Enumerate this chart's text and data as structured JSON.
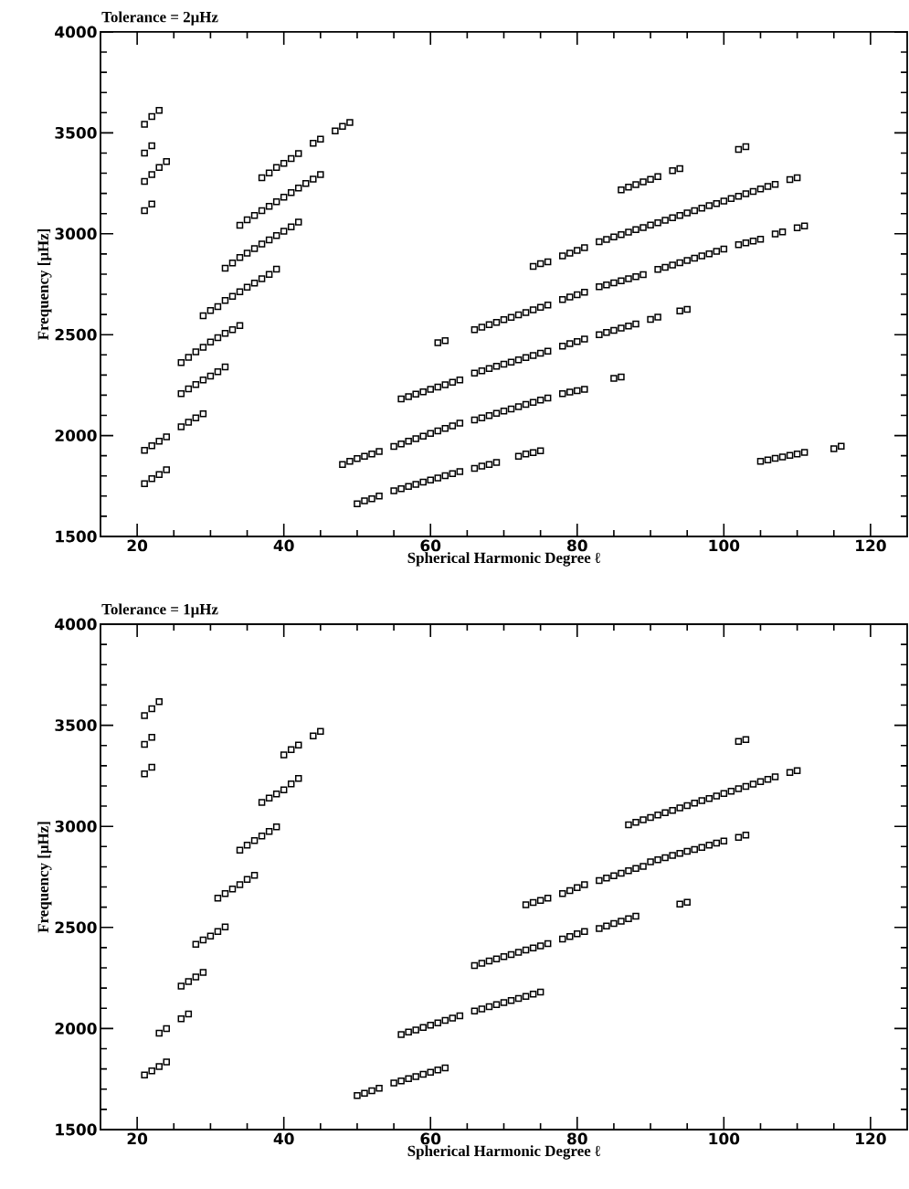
{
  "chart_data": [
    {
      "type": "scatter",
      "title": "Tolerance = 2μHz",
      "xlabel": "Spherical Harmonic Degree ℓ",
      "ylabel": "Frequency [μHz]",
      "xlim": [
        15,
        125
      ],
      "ylim": [
        1500,
        4000
      ],
      "xticks": [
        20,
        40,
        60,
        80,
        100,
        120
      ],
      "yticks": [
        1500,
        2000,
        2500,
        3000,
        3500,
        4000
      ],
      "marker": "square",
      "series": [
        {
          "color": "#000000",
          "x": [
            21,
            22,
            23
          ],
          "values": [
            3543,
            3581,
            3612
          ]
        },
        {
          "color": "#000000",
          "x": [
            21,
            22
          ],
          "values": [
            3400,
            3436
          ]
        },
        {
          "color": "#000000",
          "x": [
            21,
            22,
            23,
            24
          ],
          "values": [
            3259,
            3293,
            3328,
            3358
          ]
        },
        {
          "color": "#000000",
          "x": [
            21,
            22
          ],
          "values": [
            3114,
            3147
          ]
        },
        {
          "color": "#000000",
          "x": [
            21,
            22,
            23,
            24
          ],
          "values": [
            1927,
            1949,
            1972,
            1994
          ]
        },
        {
          "color": "#000000",
          "x": [
            21,
            22,
            23,
            24
          ],
          "values": [
            1762,
            1786,
            1807,
            1831
          ]
        },
        {
          "color": "#000000",
          "x": [
            26,
            27,
            28,
            29
          ],
          "values": [
            2043,
            2066,
            2088,
            2108
          ]
        },
        {
          "color": "#000000",
          "x": [
            26,
            27,
            28,
            29,
            30,
            31,
            32
          ],
          "values": [
            2208,
            2231,
            2253,
            2275,
            2295,
            2316,
            2340
          ]
        },
        {
          "color": "#000000",
          "x": [
            26,
            27,
            28,
            29,
            30,
            31,
            32,
            33,
            34
          ],
          "values": [
            2362,
            2388,
            2415,
            2437,
            2463,
            2485,
            2507,
            2525,
            2545
          ]
        },
        {
          "color": "#000000",
          "x": [
            29,
            30,
            31,
            32,
            33,
            34,
            35,
            36,
            37,
            38,
            39
          ],
          "values": [
            2594,
            2620,
            2639,
            2669,
            2690,
            2712,
            2735,
            2755,
            2777,
            2799,
            2825
          ]
        },
        {
          "color": "#000000",
          "x": [
            32,
            33,
            34,
            35,
            36,
            37,
            38,
            39,
            40,
            41,
            42
          ],
          "values": [
            2829,
            2855,
            2882,
            2904,
            2927,
            2949,
            2969,
            2991,
            3013,
            3034,
            3058
          ]
        },
        {
          "color": "#000000",
          "x": [
            34,
            35,
            36,
            37,
            38,
            39,
            40,
            41,
            42,
            43,
            44,
            45
          ],
          "values": [
            3042,
            3069,
            3091,
            3114,
            3136,
            3159,
            3181,
            3204,
            3226,
            3249,
            3271,
            3293
          ]
        },
        {
          "color": "#000000",
          "x": [
            37,
            38,
            39,
            40,
            41,
            42,
            44,
            45,
            47,
            48,
            49
          ],
          "values": [
            3278,
            3301,
            3328,
            3349,
            3373,
            3398,
            3448,
            3469,
            3510,
            3532,
            3551
          ]
        },
        {
          "color": "#000000",
          "x": [
            50,
            51,
            52,
            53,
            55,
            56,
            57,
            58,
            59,
            60,
            61,
            62,
            63,
            64,
            66,
            67,
            68,
            69,
            72,
            73,
            74,
            75
          ],
          "values": [
            1662,
            1677,
            1687,
            1700,
            1726,
            1737,
            1748,
            1758,
            1769,
            1780,
            1790,
            1801,
            1811,
            1822,
            1837,
            1849,
            1857,
            1867,
            1897,
            1909,
            1916,
            1924
          ]
        },
        {
          "color": "#000000",
          "x": [
            48,
            49,
            50,
            51,
            52,
            53,
            55,
            56,
            57,
            58,
            59,
            60,
            61,
            62,
            63,
            64,
            66,
            67,
            68,
            69,
            70,
            71,
            72,
            73,
            74,
            75,
            76,
            78,
            79,
            80,
            81,
            85,
            86
          ],
          "values": [
            1857,
            1872,
            1886,
            1897,
            1909,
            1921,
            1946,
            1959,
            1972,
            1984,
            1997,
            2010,
            2023,
            2035,
            2048,
            2061,
            2077,
            2088,
            2099,
            2110,
            2121,
            2132,
            2143,
            2154,
            2165,
            2176,
            2186,
            2208,
            2215,
            2222,
            2229,
            2283,
            2290
          ]
        },
        {
          "color": "#000000",
          "x": [
            56,
            57,
            58,
            59,
            60,
            61,
            62,
            63,
            64,
            66,
            67,
            68,
            69,
            70,
            71,
            72,
            73,
            74,
            75,
            76,
            78,
            79,
            80,
            81,
            83,
            84,
            85,
            86,
            87,
            88,
            90,
            91,
            94,
            95
          ],
          "values": [
            2181,
            2193,
            2205,
            2217,
            2229,
            2240,
            2252,
            2264,
            2276,
            2310,
            2321,
            2332,
            2343,
            2354,
            2364,
            2375,
            2386,
            2397,
            2408,
            2418,
            2443,
            2455,
            2466,
            2478,
            2500,
            2511,
            2521,
            2532,
            2543,
            2553,
            2575,
            2587,
            2617,
            2625
          ]
        },
        {
          "color": "#000000",
          "x": [
            61,
            62
          ],
          "values": [
            2460,
            2470
          ]
        },
        {
          "color": "#000000",
          "x": [
            66,
            67,
            68,
            69,
            70,
            71,
            72,
            73,
            74,
            75,
            76,
            78,
            79,
            80,
            81,
            83,
            84,
            85,
            86,
            87,
            88,
            89,
            91,
            92,
            93,
            94,
            95,
            96,
            97,
            98,
            99,
            100,
            102,
            103,
            104,
            105,
            107,
            108,
            110,
            111
          ],
          "values": [
            2525,
            2537,
            2549,
            2561,
            2574,
            2586,
            2598,
            2610,
            2623,
            2635,
            2647,
            2674,
            2686,
            2698,
            2710,
            2737,
            2747,
            2757,
            2767,
            2777,
            2787,
            2797,
            2823,
            2834,
            2845,
            2856,
            2868,
            2879,
            2890,
            2901,
            2913,
            2924,
            2946,
            2955,
            2964,
            2973,
            2999,
            3009,
            3029,
            3039
          ]
        },
        {
          "color": "#000000",
          "x": [
            74,
            75,
            76,
            78,
            79,
            80,
            81,
            83,
            84,
            85,
            86,
            87,
            88,
            89,
            90,
            91,
            92,
            93,
            94,
            95,
            96,
            97,
            98,
            99,
            100,
            101,
            102,
            103,
            104,
            105,
            106,
            107,
            109,
            110
          ],
          "values": [
            2838,
            2852,
            2861,
            2890,
            2904,
            2917,
            2931,
            2960,
            2972,
            2984,
            2996,
            3008,
            3020,
            3031,
            3043,
            3055,
            3067,
            3079,
            3091,
            3103,
            3115,
            3127,
            3139,
            3150,
            3162,
            3174,
            3186,
            3198,
            3210,
            3222,
            3234,
            3245,
            3268,
            3278
          ]
        },
        {
          "color": "#000000",
          "x": [
            86,
            87,
            88,
            89,
            90,
            91,
            93,
            94,
            102,
            103
          ],
          "values": [
            3218,
            3231,
            3244,
            3257,
            3270,
            3283,
            3313,
            3323,
            3418,
            3431
          ]
        },
        {
          "color": "#000000",
          "x": [
            105,
            106,
            107,
            108,
            109,
            110,
            111,
            115,
            116
          ],
          "values": [
            1872,
            1879,
            1887,
            1894,
            1902,
            1909,
            1917,
            1935,
            1947
          ]
        }
      ]
    },
    {
      "type": "scatter",
      "title": "Tolerance = 1μHz",
      "xlabel": "Spherical Harmonic Degree ℓ",
      "ylabel": "Frequency [μHz]",
      "xlim": [
        15,
        125
      ],
      "ylim": [
        1500,
        4000
      ],
      "xticks": [
        20,
        40,
        60,
        80,
        100,
        120
      ],
      "yticks": [
        1500,
        2000,
        2500,
        3000,
        3500,
        4000
      ],
      "marker": "square",
      "series": [
        {
          "color": "#000000",
          "x": [
            21,
            22,
            23
          ],
          "values": [
            3548,
            3582,
            3617
          ]
        },
        {
          "color": "#000000",
          "x": [
            21,
            22
          ],
          "values": [
            3406,
            3440
          ]
        },
        {
          "color": "#000000",
          "x": [
            21,
            22
          ],
          "values": [
            3260,
            3293
          ]
        },
        {
          "color": "#000000",
          "x": [
            21,
            22,
            23,
            24
          ],
          "values": [
            1770,
            1790,
            1812,
            1835
          ]
        },
        {
          "color": "#000000",
          "x": [
            23,
            24
          ],
          "values": [
            1977,
            2000
          ]
        },
        {
          "color": "#000000",
          "x": [
            26,
            27
          ],
          "values": [
            2048,
            2072
          ]
        },
        {
          "color": "#000000",
          "x": [
            26,
            27,
            28,
            29
          ],
          "values": [
            2210,
            2232,
            2255,
            2277
          ]
        },
        {
          "color": "#000000",
          "x": [
            28,
            29,
            30,
            31,
            32
          ],
          "values": [
            2417,
            2438,
            2457,
            2480,
            2502
          ]
        },
        {
          "color": "#000000",
          "x": [
            31,
            32,
            33,
            34,
            35,
            36
          ],
          "values": [
            2645,
            2667,
            2690,
            2712,
            2738,
            2758
          ]
        },
        {
          "color": "#000000",
          "x": [
            34,
            35,
            36,
            37,
            38,
            39
          ],
          "values": [
            2882,
            2907,
            2930,
            2952,
            2975,
            2997
          ]
        },
        {
          "color": "#000000",
          "x": [
            37,
            38,
            39,
            40,
            41,
            42
          ],
          "values": [
            3118,
            3140,
            3160,
            3180,
            3210,
            3237
          ]
        },
        {
          "color": "#000000",
          "x": [
            40,
            41,
            42
          ],
          "values": [
            3353,
            3380,
            3402
          ]
        },
        {
          "color": "#000000",
          "x": [
            44,
            45
          ],
          "values": [
            3447,
            3470
          ]
        },
        {
          "color": "#000000",
          "x": [
            50,
            51,
            52,
            53,
            55,
            56,
            57,
            58,
            59,
            60,
            61,
            62
          ],
          "values": [
            1668,
            1680,
            1692,
            1705,
            1730,
            1741,
            1752,
            1762,
            1773,
            1784,
            1795,
            1805
          ]
        },
        {
          "color": "#000000",
          "x": [
            56,
            57,
            58,
            59,
            60,
            61,
            62,
            63,
            64,
            66,
            67,
            68,
            69,
            70,
            71,
            72,
            73,
            74,
            75
          ],
          "values": [
            1970,
            1982,
            1993,
            2005,
            2017,
            2028,
            2040,
            2051,
            2063,
            2087,
            2097,
            2108,
            2118,
            2128,
            2139,
            2149,
            2159,
            2170,
            2180
          ]
        },
        {
          "color": "#000000",
          "x": [
            66,
            67,
            68,
            69,
            70,
            71,
            72,
            73,
            74,
            75,
            76,
            78,
            79,
            80,
            81,
            83,
            84,
            85,
            86,
            87,
            88,
            94,
            95
          ],
          "values": [
            2312,
            2323,
            2334,
            2344,
            2355,
            2366,
            2377,
            2388,
            2398,
            2409,
            2420,
            2443,
            2455,
            2468,
            2480,
            2495,
            2507,
            2519,
            2531,
            2543,
            2555,
            2615,
            2625
          ]
        },
        {
          "color": "#000000",
          "x": [
            73,
            74,
            75,
            76,
            78,
            79,
            80,
            81,
            83,
            84,
            85,
            86,
            87,
            88,
            89,
            90,
            91,
            92,
            93,
            94,
            95,
            96,
            97,
            98,
            99,
            100,
            102,
            103
          ],
          "values": [
            2612,
            2623,
            2634,
            2645,
            2667,
            2682,
            2697,
            2712,
            2732,
            2744,
            2756,
            2768,
            2780,
            2792,
            2802,
            2825,
            2835,
            2845,
            2856,
            2866,
            2876,
            2886,
            2896,
            2907,
            2917,
            2927,
            2945,
            2957
          ]
        },
        {
          "color": "#000000",
          "x": [
            87,
            88,
            89,
            90,
            91,
            92,
            93,
            94,
            95,
            96,
            97,
            98,
            99,
            100,
            101,
            102,
            103,
            104,
            105,
            106,
            107,
            109,
            110
          ],
          "values": [
            3008,
            3020,
            3032,
            3044,
            3056,
            3067,
            3079,
            3091,
            3103,
            3115,
            3127,
            3138,
            3150,
            3162,
            3174,
            3186,
            3198,
            3209,
            3221,
            3233,
            3245,
            3267,
            3275
          ]
        },
        {
          "color": "#000000",
          "x": [
            102,
            103
          ],
          "values": [
            3420,
            3429
          ]
        }
      ]
    }
  ]
}
